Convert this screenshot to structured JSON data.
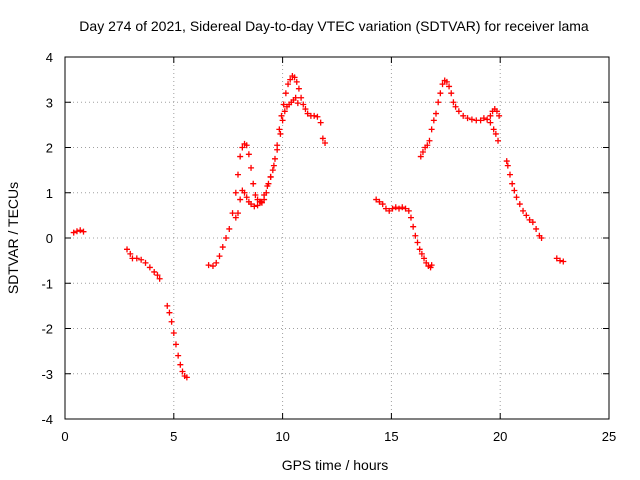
{
  "chart_data": {
    "type": "scatter",
    "title": "Day 274 of 2021, Sidereal Day-to-day VTEC variation (SDTVAR) for receiver lama",
    "xlabel": "GPS time / hours",
    "ylabel": "SDTVAR / TECUs",
    "xlim": [
      0,
      25
    ],
    "ylim": [
      -4,
      4
    ],
    "xticks": [
      0,
      5,
      10,
      15,
      20,
      25
    ],
    "yticks": [
      -4,
      -3,
      -2,
      -1,
      0,
      1,
      2,
      3,
      4
    ],
    "grid": true,
    "marker": "plus",
    "color": "#ff0000",
    "segments": [
      [
        [
          0.4,
          0.12
        ],
        [
          0.55,
          0.15
        ],
        [
          0.7,
          0.17
        ],
        [
          0.85,
          0.14
        ]
      ],
      [
        [
          2.85,
          -0.25
        ],
        [
          3.0,
          -0.35
        ],
        [
          3.1,
          -0.45
        ],
        [
          3.3,
          -0.45
        ],
        [
          3.5,
          -0.48
        ],
        [
          3.7,
          -0.55
        ],
        [
          3.9,
          -0.65
        ],
        [
          4.1,
          -0.75
        ],
        [
          4.25,
          -0.82
        ],
        [
          4.35,
          -0.9
        ]
      ],
      [
        [
          4.7,
          -1.5
        ],
        [
          4.8,
          -1.65
        ],
        [
          4.9,
          -1.85
        ],
        [
          5.0,
          -2.1
        ],
        [
          5.1,
          -2.35
        ],
        [
          5.2,
          -2.6
        ],
        [
          5.3,
          -2.8
        ],
        [
          5.4,
          -2.95
        ],
        [
          5.5,
          -3.05
        ],
        [
          5.6,
          -3.08
        ]
      ],
      [
        [
          6.6,
          -0.6
        ],
        [
          6.8,
          -0.62
        ],
        [
          6.95,
          -0.55
        ],
        [
          7.1,
          -0.4
        ],
        [
          7.25,
          -0.2
        ],
        [
          7.4,
          0.0
        ],
        [
          7.55,
          0.2
        ],
        [
          7.7,
          0.55
        ],
        [
          7.85,
          1.0
        ],
        [
          7.95,
          1.4
        ],
        [
          8.05,
          1.8
        ],
        [
          8.15,
          2.0
        ],
        [
          8.25,
          2.08
        ],
        [
          8.35,
          2.05
        ],
        [
          8.45,
          1.85
        ],
        [
          8.55,
          1.55
        ],
        [
          8.65,
          1.2
        ],
        [
          8.75,
          0.95
        ],
        [
          8.85,
          0.85
        ],
        [
          8.95,
          0.8
        ],
        [
          9.05,
          0.78
        ],
        [
          9.15,
          0.85
        ],
        [
          9.25,
          1.0
        ],
        [
          9.35,
          1.2
        ],
        [
          9.45,
          1.35
        ],
        [
          9.55,
          1.5
        ],
        [
          9.65,
          1.75
        ],
        [
          9.75,
          2.05
        ],
        [
          9.85,
          2.4
        ],
        [
          9.95,
          2.7
        ],
        [
          10.05,
          2.95
        ],
        [
          10.15,
          3.2
        ],
        [
          10.25,
          3.4
        ],
        [
          10.35,
          3.5
        ],
        [
          10.45,
          3.58
        ],
        [
          10.55,
          3.55
        ],
        [
          10.65,
          3.45
        ],
        [
          10.75,
          3.3
        ],
        [
          10.85,
          3.1
        ],
        [
          10.95,
          2.95
        ],
        [
          11.05,
          2.85
        ],
        [
          11.15,
          2.75
        ],
        [
          11.3,
          2.7
        ],
        [
          11.45,
          2.7
        ],
        [
          11.6,
          2.68
        ],
        [
          11.75,
          2.55
        ],
        [
          11.85,
          2.2
        ],
        [
          11.95,
          2.1
        ]
      ],
      [
        [
          7.85,
          0.45
        ],
        [
          7.95,
          0.55
        ],
        [
          8.05,
          0.85
        ],
        [
          8.15,
          1.05
        ],
        [
          8.25,
          1.0
        ],
        [
          8.35,
          0.9
        ],
        [
          8.45,
          0.8
        ],
        [
          8.55,
          0.75
        ],
        [
          8.7,
          0.7
        ],
        [
          8.85,
          0.72
        ],
        [
          9.0,
          0.8
        ],
        [
          9.15,
          0.95
        ],
        [
          9.3,
          1.15
        ],
        [
          9.45,
          1.35
        ],
        [
          9.6,
          1.6
        ],
        [
          9.75,
          1.95
        ],
        [
          9.9,
          2.3
        ],
        [
          10.0,
          2.6
        ],
        [
          10.1,
          2.8
        ],
        [
          10.2,
          2.9
        ],
        [
          10.3,
          2.95
        ],
        [
          10.4,
          3.0
        ],
        [
          10.5,
          3.05
        ],
        [
          10.6,
          3.1
        ],
        [
          10.7,
          2.98
        ]
      ],
      [
        [
          14.3,
          0.85
        ],
        [
          14.45,
          0.8
        ],
        [
          14.6,
          0.75
        ],
        [
          14.75,
          0.65
        ],
        [
          14.9,
          0.6
        ],
        [
          15.05,
          0.65
        ],
        [
          15.2,
          0.68
        ],
        [
          15.35,
          0.65
        ],
        [
          15.5,
          0.68
        ],
        [
          15.65,
          0.65
        ],
        [
          15.8,
          0.6
        ],
        [
          15.9,
          0.45
        ],
        [
          16.0,
          0.25
        ],
        [
          16.1,
          0.05
        ],
        [
          16.2,
          -0.1
        ],
        [
          16.3,
          -0.25
        ],
        [
          16.4,
          -0.35
        ],
        [
          16.5,
          -0.45
        ],
        [
          16.6,
          -0.55
        ],
        [
          16.7,
          -0.62
        ],
        [
          16.8,
          -0.65
        ],
        [
          16.85,
          -0.6
        ]
      ],
      [
        [
          16.35,
          1.8
        ],
        [
          16.45,
          1.9
        ],
        [
          16.55,
          2.0
        ],
        [
          16.65,
          2.05
        ],
        [
          16.75,
          2.15
        ],
        [
          16.85,
          2.4
        ],
        [
          16.95,
          2.6
        ],
        [
          17.05,
          2.75
        ],
        [
          17.15,
          3.0
        ],
        [
          17.25,
          3.2
        ],
        [
          17.35,
          3.4
        ],
        [
          17.45,
          3.48
        ],
        [
          17.55,
          3.45
        ],
        [
          17.65,
          3.35
        ],
        [
          17.75,
          3.2
        ],
        [
          17.85,
          3.0
        ],
        [
          17.95,
          2.9
        ],
        [
          18.1,
          2.8
        ],
        [
          18.3,
          2.7
        ],
        [
          18.5,
          2.65
        ],
        [
          18.7,
          2.62
        ],
        [
          18.9,
          2.6
        ],
        [
          19.1,
          2.6
        ],
        [
          19.25,
          2.65
        ],
        [
          19.4,
          2.62
        ],
        [
          19.55,
          2.55
        ],
        [
          19.7,
          2.4
        ],
        [
          19.8,
          2.3
        ],
        [
          19.9,
          2.15
        ]
      ],
      [
        [
          19.55,
          2.7
        ],
        [
          19.65,
          2.8
        ],
        [
          19.75,
          2.85
        ],
        [
          19.85,
          2.8
        ],
        [
          19.95,
          2.7
        ]
      ],
      [
        [
          20.3,
          1.7
        ],
        [
          20.35,
          1.6
        ],
        [
          20.45,
          1.4
        ],
        [
          20.55,
          1.2
        ],
        [
          20.65,
          1.05
        ],
        [
          20.75,
          0.9
        ],
        [
          20.9,
          0.75
        ],
        [
          21.05,
          0.6
        ],
        [
          21.2,
          0.5
        ],
        [
          21.35,
          0.4
        ],
        [
          21.5,
          0.35
        ],
        [
          21.65,
          0.2
        ],
        [
          21.8,
          0.05
        ],
        [
          21.9,
          0.0
        ]
      ],
      [
        [
          22.6,
          -0.45
        ],
        [
          22.75,
          -0.5
        ],
        [
          22.9,
          -0.52
        ]
      ]
    ]
  }
}
